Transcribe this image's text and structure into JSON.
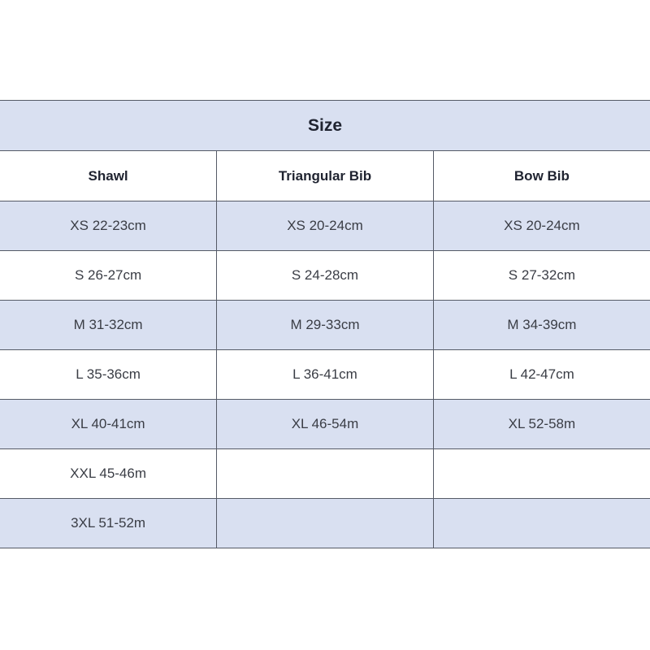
{
  "title": "Size",
  "columns": [
    "Shawl",
    "Triangular Bib",
    "Bow Bib"
  ],
  "rows": [
    [
      "XS 22-23cm",
      "XS 20-24cm",
      "XS 20-24cm"
    ],
    [
      "S 26-27cm",
      "S 24-28cm",
      "S 27-32cm"
    ],
    [
      "M 31-32cm",
      "M 29-33cm",
      "M 34-39cm"
    ],
    [
      "L 35-36cm",
      "L 36-41cm",
      "L 42-47cm"
    ],
    [
      "XL 40-41cm",
      "XL 46-54m",
      "XL 52-58m"
    ],
    [
      "XXL 45-46m",
      "",
      ""
    ],
    [
      "3XL 51-52m",
      "",
      ""
    ]
  ],
  "colors": {
    "band": "#d9e0f1",
    "border": "#555a66"
  }
}
